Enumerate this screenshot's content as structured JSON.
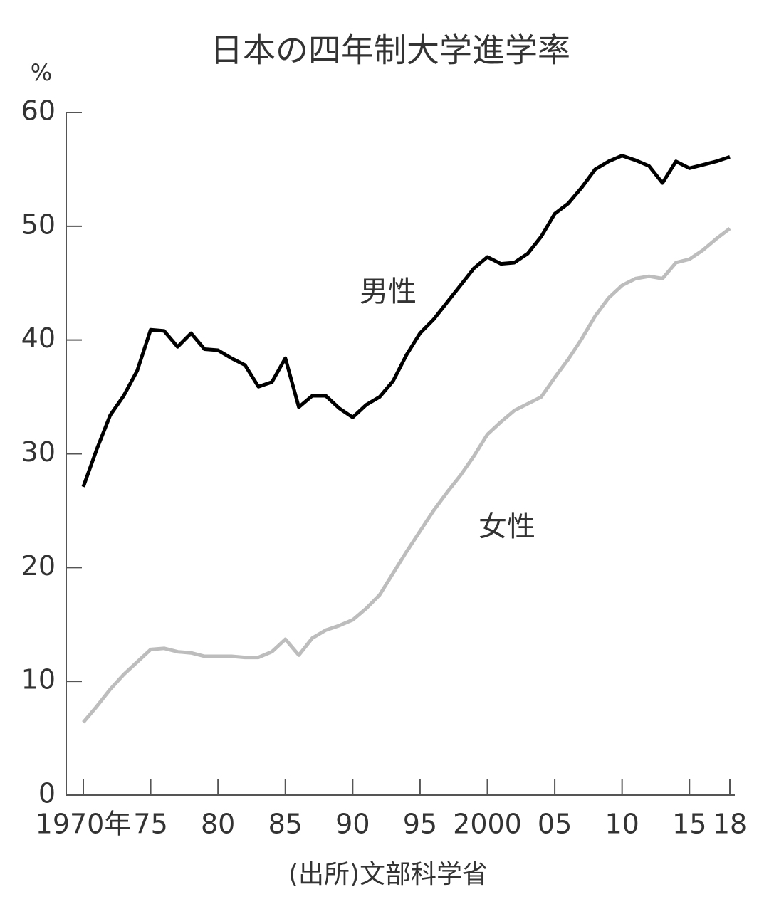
{
  "chart_data": {
    "type": "line",
    "title": "日本の四年制大学進学率",
    "y_unit": "%",
    "source": "(出所)文部科学省",
    "annotations": [
      "男性",
      "女性"
    ],
    "x": [
      1970,
      1971,
      1972,
      1973,
      1974,
      1975,
      1976,
      1977,
      1978,
      1979,
      1980,
      1981,
      1982,
      1983,
      1984,
      1985,
      1986,
      1987,
      1988,
      1989,
      1990,
      1991,
      1992,
      1993,
      1994,
      1995,
      1996,
      1997,
      1998,
      1999,
      2000,
      2001,
      2002,
      2003,
      2004,
      2005,
      2006,
      2007,
      2008,
      2009,
      2010,
      2011,
      2012,
      2013,
      2014,
      2015,
      2016,
      2017,
      2018
    ],
    "series": [
      {
        "name": "男性",
        "color": "#000000",
        "values": [
          27.1,
          30.4,
          33.4,
          35.1,
          37.3,
          40.9,
          40.8,
          39.4,
          40.6,
          39.2,
          39.1,
          38.4,
          37.8,
          35.9,
          36.3,
          38.4,
          34.1,
          35.1,
          35.1,
          34.0,
          33.2,
          34.3,
          35.0,
          36.4,
          38.7,
          40.6,
          41.8,
          43.3,
          44.8,
          46.3,
          47.3,
          46.7,
          46.8,
          47.6,
          49.1,
          51.1,
          52.0,
          53.4,
          55.0,
          55.7,
          56.2,
          55.8,
          55.3,
          53.8,
          55.7,
          55.1,
          55.4,
          55.7,
          56.1
        ]
      },
      {
        "name": "女性",
        "color": "#bdbdbd",
        "values": [
          6.4,
          7.8,
          9.3,
          10.6,
          11.7,
          12.8,
          12.9,
          12.6,
          12.5,
          12.2,
          12.2,
          12.2,
          12.1,
          12.1,
          12.6,
          13.7,
          12.3,
          13.8,
          14.5,
          14.9,
          15.4,
          16.4,
          17.6,
          19.5,
          21.4,
          23.2,
          25.0,
          26.6,
          28.1,
          29.8,
          31.7,
          32.8,
          33.8,
          34.4,
          35.0,
          36.7,
          38.3,
          40.1,
          42.1,
          43.7,
          44.8,
          45.4,
          45.6,
          45.4,
          46.8,
          47.1,
          47.9,
          48.9,
          49.8
        ]
      }
    ],
    "xlim": [
      1970,
      2018
    ],
    "xticks": [
      {
        "value": 1970,
        "label": "1970年"
      },
      {
        "value": 1975,
        "label": "75"
      },
      {
        "value": 1980,
        "label": "80"
      },
      {
        "value": 1985,
        "label": "85"
      },
      {
        "value": 1990,
        "label": "90"
      },
      {
        "value": 1995,
        "label": "95"
      },
      2000,
      {
        "value": 2005,
        "label": "05"
      },
      {
        "value": 2010,
        "label": "10"
      },
      {
        "value": 2015,
        "label": "15"
      },
      {
        "value": 2018,
        "label": "18"
      }
    ],
    "ylim": [
      0,
      60
    ],
    "yticks": [
      0,
      10,
      20,
      30,
      40,
      50,
      60
    ],
    "grid": false
  }
}
